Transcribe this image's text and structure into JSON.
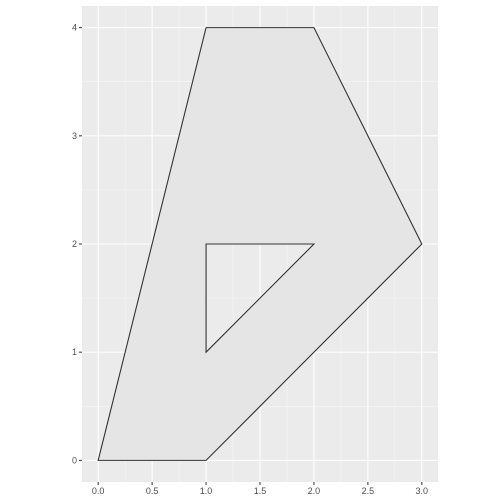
{
  "chart_data": {
    "type": "polygon",
    "title": "",
    "xlabel": "",
    "ylabel": "",
    "xlim": [
      -0.15,
      3.15
    ],
    "ylim": [
      -0.2,
      4.2
    ],
    "grid": true,
    "x_ticks": [
      0.0,
      0.5,
      1.0,
      1.5,
      2.0,
      2.5,
      3.0
    ],
    "x_tick_labels": [
      "0.0",
      "0.5",
      "1.0",
      "1.5",
      "2.0",
      "2.5",
      "3.0"
    ],
    "y_ticks": [
      0,
      1,
      2,
      3,
      4
    ],
    "y_tick_labels": [
      "0",
      "1",
      "2",
      "3",
      "4"
    ],
    "polygon": {
      "outer": [
        [
          0,
          0
        ],
        [
          1,
          0
        ],
        [
          3,
          2
        ],
        [
          2,
          4
        ],
        [
          1,
          4
        ]
      ],
      "hole": [
        [
          1,
          1
        ],
        [
          2,
          2
        ],
        [
          1,
          2
        ]
      ]
    },
    "colors": {
      "panel_background": "#ebebeb",
      "grid_major": "#ffffff",
      "grid_minor": "#f5f5f5",
      "fill": "#e5e5e5",
      "stroke": "#333333",
      "axis_text": "#4d4d4d",
      "tick": "#333333"
    }
  }
}
